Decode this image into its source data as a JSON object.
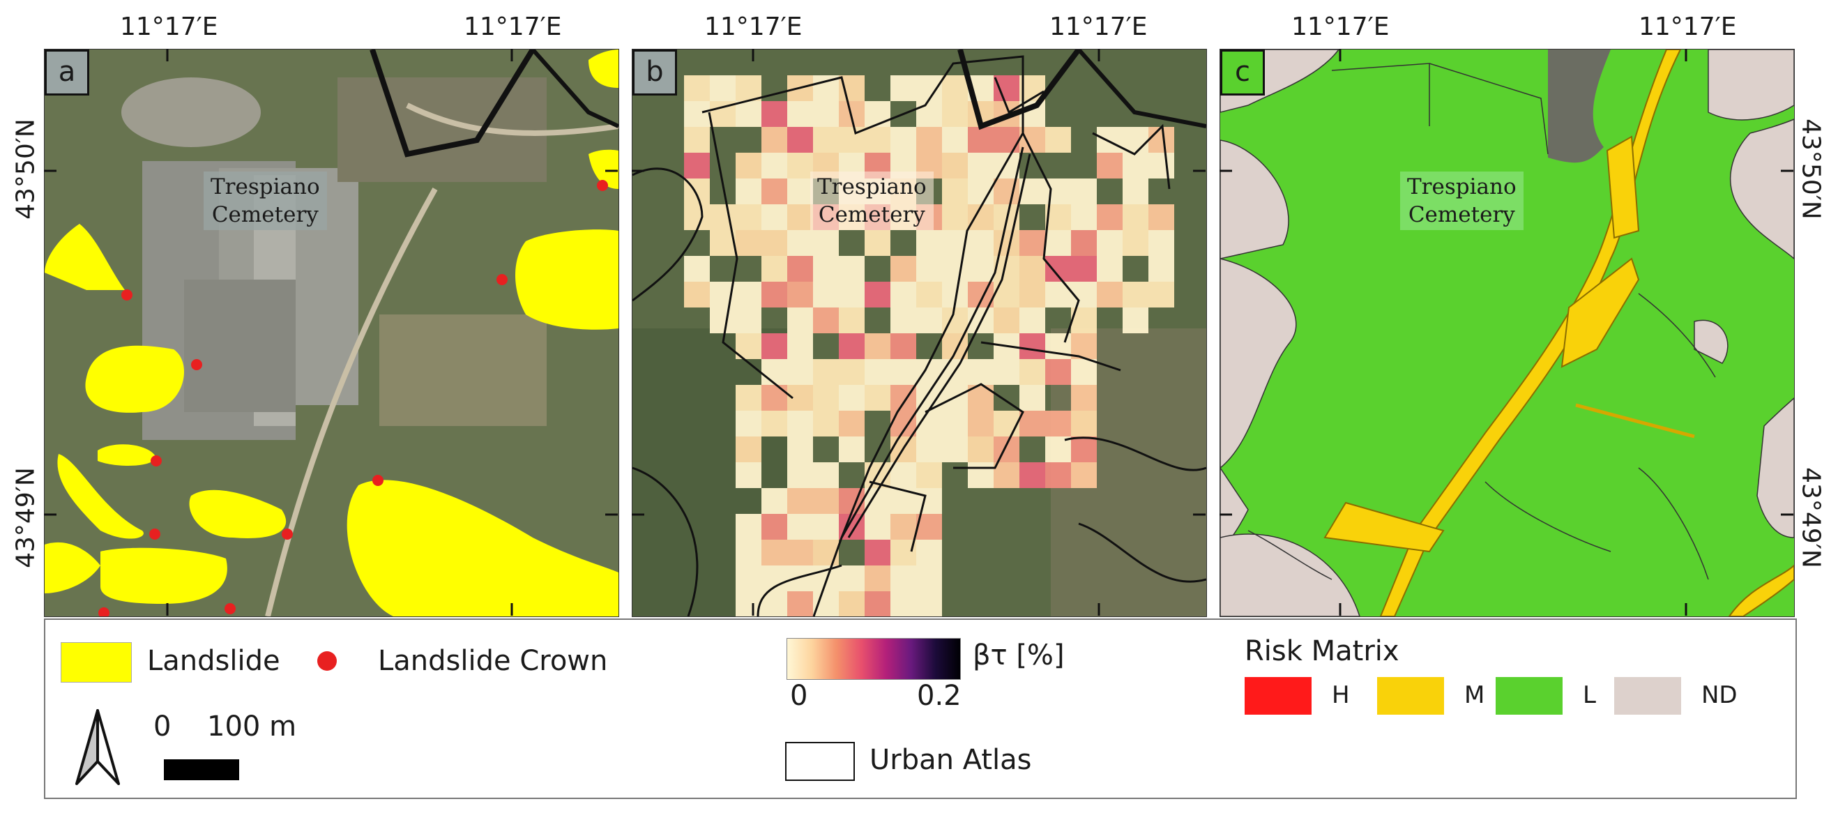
{
  "axis_labels": {
    "lon_top": "11°17′E",
    "lat_upper": "43°50′N",
    "lat_lower": "43°49′N"
  },
  "panels": [
    {
      "id": "a",
      "place_label_line1": "Trespiano",
      "place_label_line2": "Cemetery",
      "label_bg": "#9aa5a4"
    },
    {
      "id": "b",
      "place_label_line1": "Trespiano",
      "place_label_line2": "Cemetery",
      "label_bg": "#9aa5a4"
    },
    {
      "id": "c",
      "place_label_line1": "Trespiano",
      "place_label_line2": "Cemetery",
      "label_bg": "#76dc67"
    }
  ],
  "legend": {
    "landslide_label": "Landslide",
    "landslide_color": "#ffff00",
    "crown_label": "Landslide Crown",
    "crown_color": "#e82020",
    "scale_label_zero": "0",
    "scale_label_dist": "100 m",
    "beta_label": "βτ [%]",
    "beta_min": "0",
    "beta_max": "0.2",
    "urban_atlas_label": "Urban Atlas",
    "risk_title": "Risk Matrix",
    "risk_classes": [
      {
        "label": "H",
        "color": "#ff1a1a"
      },
      {
        "label": "M",
        "color": "#f9d20a"
      },
      {
        "label": "L",
        "color": "#5ad12e"
      },
      {
        "label": "ND",
        "color": "#ddd1cc"
      }
    ]
  }
}
